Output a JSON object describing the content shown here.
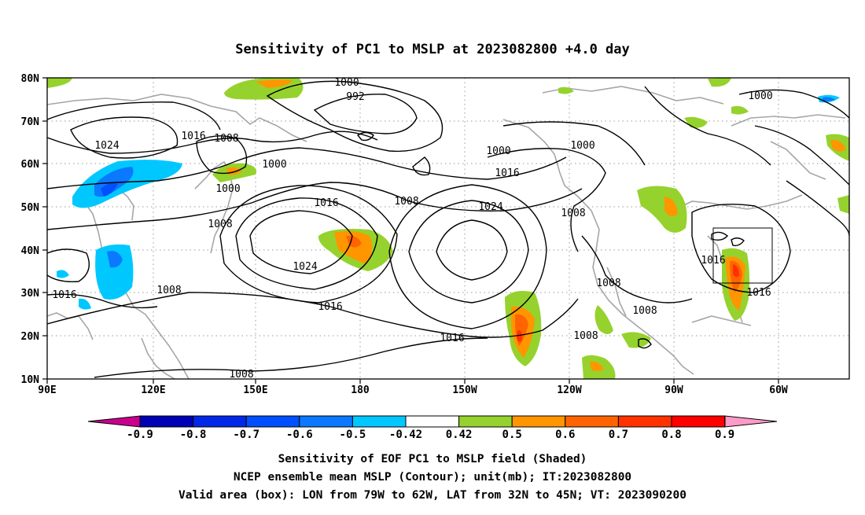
{
  "title": "Sensitivity of PC1 to MSLP at 2023082800 +4.0 day",
  "map": {
    "lon_labels": [
      "90E",
      "120E",
      "150E",
      "180",
      "150W",
      "120W",
      "90W",
      "60W"
    ],
    "lat_labels": [
      "80N",
      "70N",
      "60N",
      "50N",
      "40N",
      "30N",
      "20N",
      "10N"
    ],
    "grid_lines": "dotted",
    "contour_labels": [
      "1000",
      "992",
      "1024",
      "1016",
      "1008",
      "1000",
      "1000",
      "1008",
      "1000",
      "1016",
      "1016",
      "1008",
      "1024",
      "1008",
      "1024",
      "1000",
      "1008",
      "1016",
      "1016",
      "1008",
      "1016",
      "1008",
      "1008",
      "1016",
      "1016",
      "1008",
      "1008",
      "1000"
    ],
    "valid_box": {
      "lon": [
        -79,
        -62
      ],
      "lat": [
        32,
        45
      ]
    }
  },
  "colorbar": {
    "labels": [
      "-0.9",
      "-0.8",
      "-0.7",
      "-0.6",
      "-0.5",
      "-0.42",
      "0.42",
      "0.5",
      "0.6",
      "0.7",
      "0.8",
      "0.9"
    ],
    "colors": [
      "#0000b4",
      "#0028e6",
      "#0050ff",
      "#0a78ff",
      "#00c8ff",
      "#ffffff",
      "#96d22d",
      "#ff9600",
      "#ff6400",
      "#ff3200",
      "#ff0000"
    ],
    "left_arrow_color": "#c8008c",
    "right_arrow_color": "#ff9bc8"
  },
  "footer": {
    "line1": "Sensitivity of EOF PC1 to MSLP field (Shaded)",
    "line2": "NCEP ensemble mean MSLP (Contour); unit(mb); IT:2023082800",
    "line3": "Valid area (box): LON from 79W to 62W, LAT from 32N to 45N; VT: 2023090200"
  }
}
